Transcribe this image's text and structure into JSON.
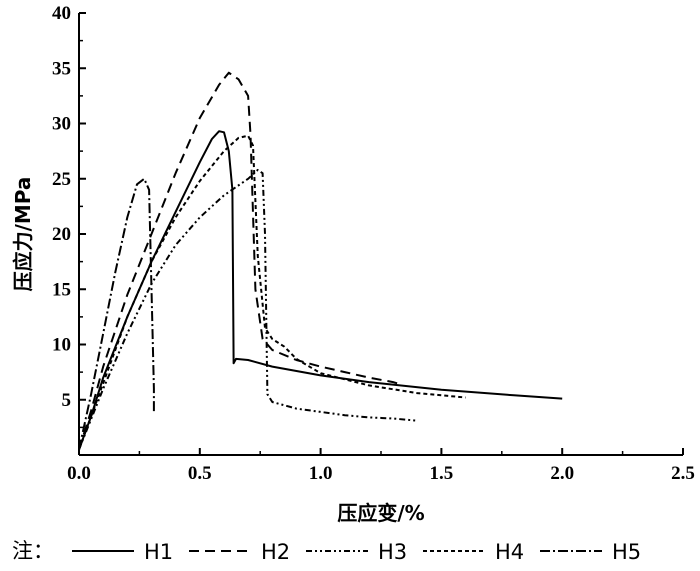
{
  "chart_data": {
    "type": "line",
    "title": "",
    "xlabel": "压应变/%",
    "ylabel": "压应力/MPa",
    "xlim": [
      0,
      2.5
    ],
    "ylim": [
      0,
      40
    ],
    "xticks": [
      "0.0",
      "0.5",
      "1.0",
      "1.5",
      "2.0",
      "2.5"
    ],
    "yticks": [
      "5",
      "10",
      "15",
      "20",
      "25",
      "30",
      "35",
      "40"
    ],
    "grid": false,
    "legend_prefix": "注：",
    "legend_position": "bottom",
    "series": [
      {
        "name": "H1",
        "dash": "solid",
        "x": [
          0.0,
          0.05,
          0.1,
          0.2,
          0.3,
          0.4,
          0.5,
          0.55,
          0.58,
          0.6,
          0.62,
          0.635,
          0.64,
          0.64,
          0.65,
          0.7,
          0.8,
          1.0,
          1.2,
          1.5,
          1.8,
          2.0
        ],
        "y": [
          0.5,
          3.5,
          7.0,
          12.5,
          17.5,
          22.0,
          26.5,
          28.6,
          29.3,
          29.2,
          27.5,
          24.0,
          8.5,
          8.3,
          8.7,
          8.6,
          8.0,
          7.2,
          6.6,
          5.9,
          5.4,
          5.1
        ]
      },
      {
        "name": "H2",
        "dash": "10,6",
        "x": [
          0.0,
          0.05,
          0.1,
          0.2,
          0.3,
          0.4,
          0.5,
          0.58,
          0.62,
          0.66,
          0.7,
          0.71,
          0.73,
          0.76,
          0.8,
          0.9,
          1.0,
          1.1,
          1.2,
          1.3,
          1.33
        ],
        "y": [
          0.5,
          4.0,
          8.0,
          14.5,
          20.0,
          25.5,
          30.5,
          33.5,
          34.6,
          34.0,
          32.5,
          29.0,
          15.0,
          10.5,
          9.5,
          8.6,
          8.0,
          7.5,
          7.0,
          6.6,
          6.4
        ]
      },
      {
        "name": "H3",
        "dash": "6,3,2,3,2,3",
        "x": [
          0.0,
          0.1,
          0.2,
          0.3,
          0.4,
          0.5,
          0.6,
          0.7,
          0.74,
          0.76,
          0.77,
          0.78,
          0.8,
          0.9,
          1.0,
          1.1,
          1.2,
          1.3,
          1.4
        ],
        "y": [
          0.5,
          6.0,
          11.0,
          15.5,
          19.0,
          21.5,
          23.5,
          25.0,
          25.8,
          25.5,
          20.0,
          5.5,
          4.8,
          4.2,
          3.9,
          3.6,
          3.4,
          3.3,
          3.1
        ]
      },
      {
        "name": "H4",
        "dash": "4,3",
        "x": [
          0.0,
          0.1,
          0.2,
          0.3,
          0.4,
          0.5,
          0.6,
          0.66,
          0.7,
          0.72,
          0.74,
          0.77,
          0.8,
          0.85,
          0.9,
          1.0,
          1.2,
          1.4,
          1.6
        ],
        "y": [
          0.5,
          6.5,
          12.5,
          17.5,
          21.5,
          24.8,
          27.5,
          28.7,
          28.9,
          28.0,
          18.0,
          11.5,
          10.5,
          9.8,
          8.7,
          7.4,
          6.3,
          5.6,
          5.2
        ]
      },
      {
        "name": "H5",
        "dash": "10,3,2,3",
        "x": [
          0.0,
          0.05,
          0.1,
          0.15,
          0.2,
          0.24,
          0.27,
          0.29,
          0.3,
          0.31,
          0.31
        ],
        "y": [
          0.5,
          5.5,
          11.0,
          16.5,
          21.5,
          24.5,
          25.0,
          24.0,
          15.0,
          6.0,
          3.8
        ]
      }
    ]
  }
}
